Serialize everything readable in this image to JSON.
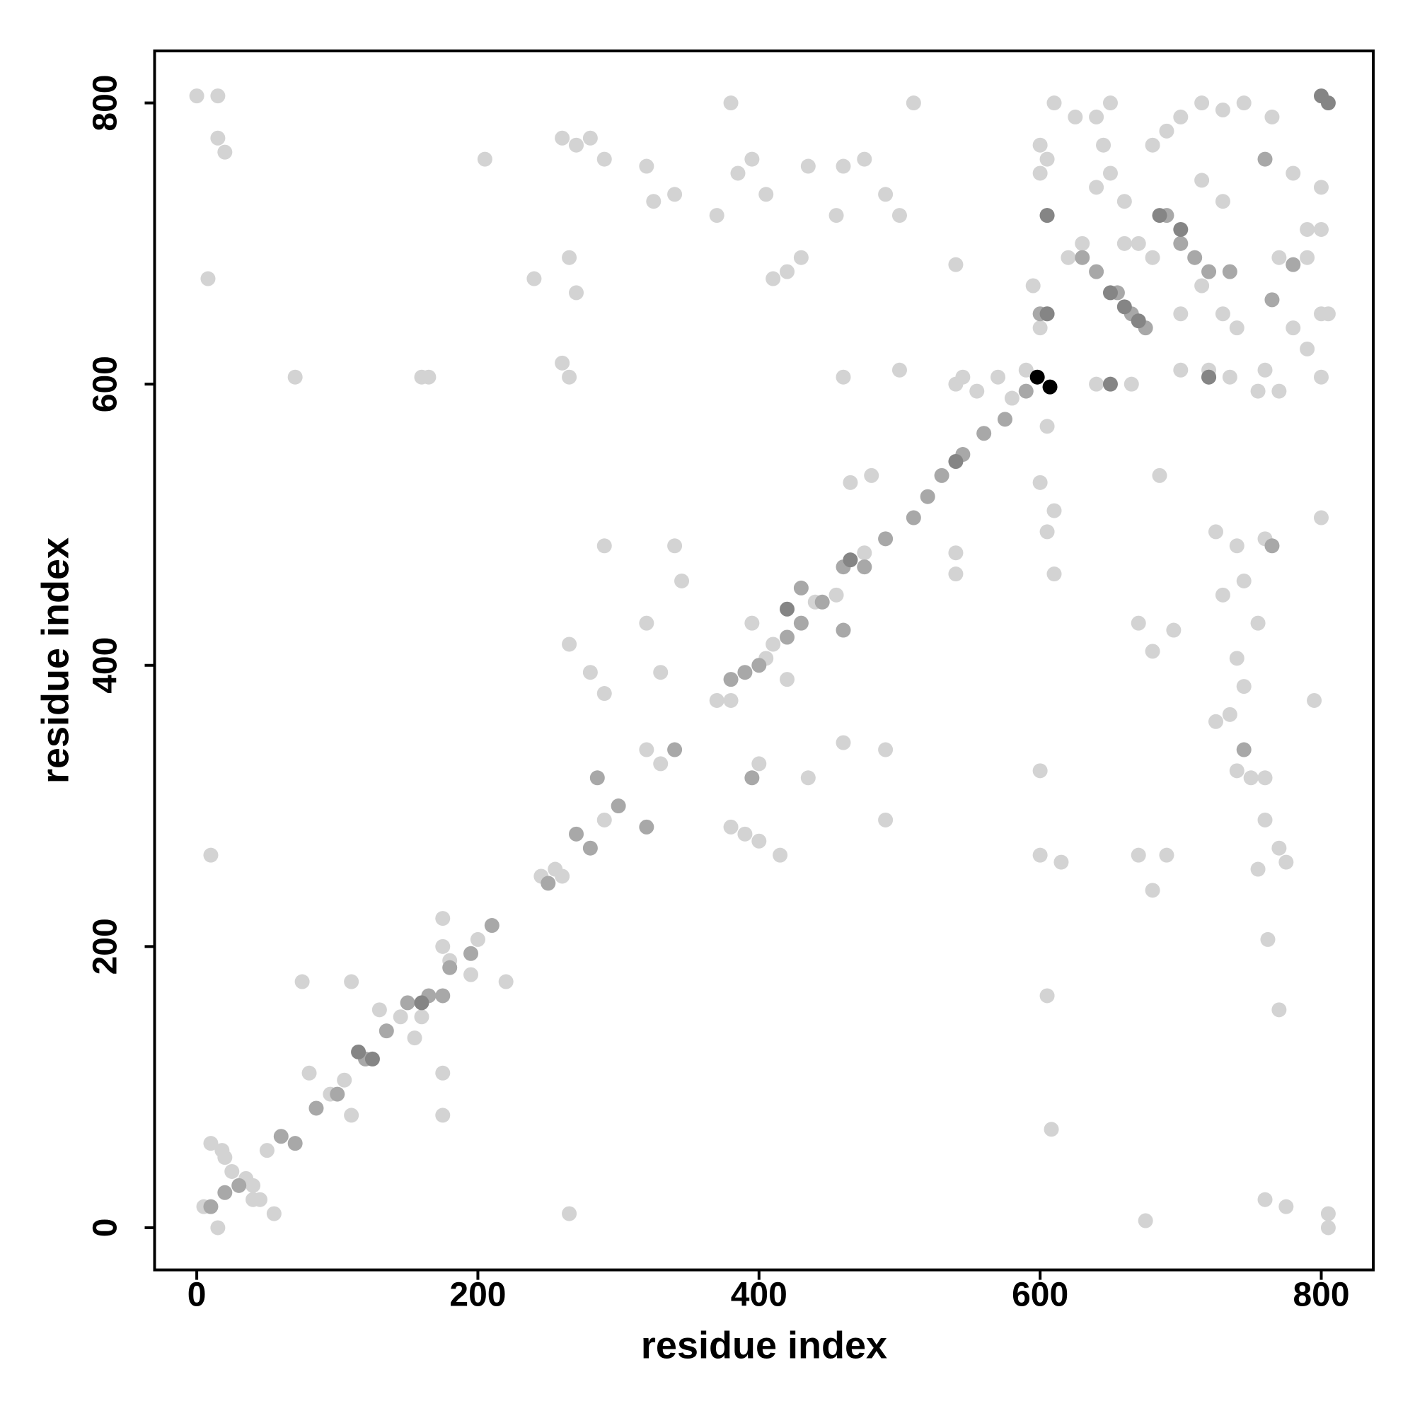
{
  "chart_data": {
    "type": "scatter",
    "xlabel": "residue index",
    "ylabel": "residue index",
    "xlim": [
      -30,
      837
    ],
    "ylim": [
      -30,
      837
    ],
    "xticks": [
      0,
      200,
      400,
      600,
      800
    ],
    "yticks": [
      0,
      200,
      400,
      600,
      800
    ],
    "grid": false,
    "series": [
      {
        "color": "#d3d3d3",
        "x": [
          0,
          15,
          15,
          20,
          8,
          10,
          70,
          5,
          15,
          25,
          35,
          40,
          55,
          75,
          110,
          175,
          175,
          110,
          160,
          165,
          260,
          270,
          280,
          290,
          265,
          270,
          240,
          260,
          265,
          320,
          325,
          340,
          370,
          380,
          385,
          395,
          405,
          410,
          420,
          430,
          435,
          455,
          460,
          475,
          490,
          500,
          510,
          540,
          460,
          465,
          480,
          500,
          545,
          570,
          205,
          290,
          340,
          345,
          320,
          265,
          280,
          290,
          330,
          395,
          420,
          435,
          400,
          380,
          390,
          400,
          415,
          460,
          490,
          490,
          540,
          540,
          600,
          605,
          600,
          610,
          605,
          610,
          605,
          608,
          600,
          615,
          265,
          675,
          760,
          775,
          805,
          805,
          670,
          680,
          690,
          670,
          680,
          695,
          685,
          725,
          740,
          745,
          730,
          755,
          740,
          745,
          735,
          725,
          740,
          760,
          750,
          760,
          770,
          775,
          755,
          762,
          770,
          795,
          800,
          805,
          790,
          800,
          780,
          760,
          755,
          770,
          760,
          610,
          625,
          640,
          650,
          645,
          650,
          660,
          640,
          700,
          715,
          730,
          745,
          765,
          780,
          800,
          790,
          800,
          790,
          770,
          800,
          600,
          605,
          600,
          595,
          620,
          630,
          660,
          670,
          680,
          700,
          715,
          730,
          700,
          665,
          735,
          680,
          690,
          730,
          715,
          640,
          720,
          740,
          600,
          605,
          590,
          580,
          540,
          555,
          475,
          475,
          440,
          455,
          410,
          405,
          370,
          380,
          330,
          320,
          290,
          255,
          245,
          260,
          220,
          200,
          195,
          180,
          155,
          145,
          130,
          105,
          95,
          80,
          175,
          175,
          160,
          50,
          40,
          45,
          18,
          10,
          20
        ],
        "values": [
          805,
          805,
          775,
          765,
          675,
          265,
          605,
          15,
          0,
          40,
          35,
          20,
          10,
          175,
          175,
          110,
          80,
          80,
          605,
          605,
          775,
          770,
          775,
          760,
          690,
          665,
          675,
          615,
          605,
          755,
          730,
          735,
          720,
          800,
          750,
          760,
          735,
          675,
          680,
          690,
          755,
          720,
          755,
          760,
          735,
          720,
          800,
          685,
          605,
          530,
          535,
          610,
          605,
          605,
          760,
          485,
          485,
          460,
          430,
          415,
          395,
          380,
          395,
          430,
          390,
          320,
          330,
          285,
          280,
          275,
          265,
          345,
          340,
          290,
          480,
          465,
          325,
          570,
          530,
          510,
          495,
          465,
          165,
          70,
          265,
          260,
          10,
          5,
          20,
          15,
          10,
          0,
          265,
          240,
          265,
          430,
          410,
          425,
          535,
          495,
          485,
          460,
          450,
          430,
          405,
          385,
          365,
          360,
          325,
          320,
          320,
          290,
          270,
          260,
          255,
          205,
          155,
          375,
          505,
          650,
          625,
          605,
          640,
          610,
          595,
          595,
          490,
          800,
          790,
          790,
          800,
          770,
          750,
          730,
          740,
          790,
          800,
          795,
          800,
          790,
          750,
          740,
          710,
          710,
          690,
          690,
          650,
          770,
          760,
          750,
          670,
          690,
          700,
          700,
          700,
          690,
          650,
          670,
          650,
          610,
          600,
          605,
          770,
          780,
          730,
          745,
          600,
          610,
          640,
          640,
          650,
          610,
          590,
          600,
          595,
          480,
          470,
          445,
          450,
          415,
          405,
          375,
          375,
          330,
          340,
          290,
          255,
          250,
          250,
          175,
          205,
          180,
          190,
          135,
          150,
          155,
          105,
          95,
          110,
          220,
          200,
          150,
          55,
          30,
          20,
          55,
          60,
          50
        ]
      },
      {
        "color": "#a8a8a8",
        "x": [
          10,
          20,
          30,
          60,
          70,
          85,
          100,
          120,
          135,
          150,
          165,
          180,
          195,
          210,
          250,
          270,
          280,
          285,
          300,
          320,
          340,
          380,
          390,
          400,
          420,
          430,
          445,
          460,
          475,
          490,
          510,
          520,
          530,
          545,
          560,
          575,
          590,
          600,
          605,
          640,
          655,
          665,
          675,
          690,
          700,
          710,
          720,
          735,
          760,
          765,
          780,
          630,
          720,
          745,
          765,
          395,
          430,
          460,
          175
        ],
        "values": [
          15,
          25,
          30,
          65,
          60,
          85,
          95,
          120,
          140,
          160,
          165,
          185,
          195,
          215,
          245,
          280,
          270,
          320,
          300,
          285,
          340,
          390,
          395,
          400,
          420,
          430,
          445,
          470,
          470,
          490,
          505,
          520,
          535,
          550,
          565,
          575,
          595,
          650,
          720,
          680,
          665,
          650,
          640,
          720,
          700,
          690,
          680,
          680,
          760,
          660,
          685,
          690,
          605,
          340,
          485,
          320,
          455,
          425,
          165
        ]
      },
      {
        "color": "#858585",
        "x": [
          650,
          660,
          670,
          700,
          800,
          805,
          685,
          605,
          605,
          650,
          720,
          160,
          125,
          115,
          540,
          465,
          420
        ],
        "values": [
          665,
          655,
          645,
          710,
          805,
          800,
          720,
          720,
          650,
          600,
          605,
          160,
          120,
          125,
          545,
          475,
          440
        ]
      },
      {
        "color": "#000000",
        "x": [
          598,
          607
        ],
        "values": [
          605,
          598
        ]
      }
    ]
  }
}
